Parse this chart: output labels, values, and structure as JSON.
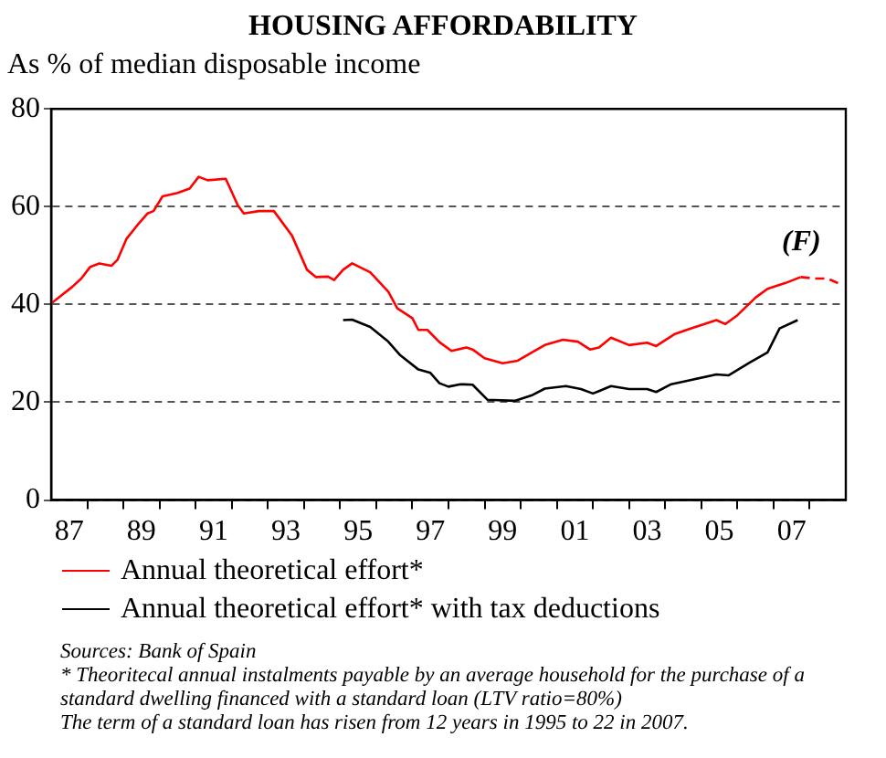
{
  "chart_data": {
    "type": "line",
    "title": "HOUSING AFFORDABILITY",
    "ylabel": "As % of median disposable income",
    "xlim": [
      "1987-01-01",
      "2009-01-01"
    ],
    "xticks": [
      {
        "value": "1987-07-01",
        "label": "87"
      },
      {
        "value": "1988-01-01",
        "label": null
      },
      {
        "value": "1989-01-01",
        "label": null
      },
      {
        "value": "1989-07-01",
        "label": "89"
      },
      {
        "value": "1990-01-01",
        "label": null
      },
      {
        "value": "1991-01-01",
        "label": null
      },
      {
        "value": "1991-07-01",
        "label": "91"
      },
      {
        "value": "1992-01-01",
        "label": null
      },
      {
        "value": "1993-01-01",
        "label": null
      },
      {
        "value": "1993-07-01",
        "label": "93"
      },
      {
        "value": "1994-01-01",
        "label": null
      },
      {
        "value": "1995-01-01",
        "label": null
      },
      {
        "value": "1995-07-01",
        "label": "95"
      },
      {
        "value": "1996-01-01",
        "label": null
      },
      {
        "value": "1997-01-01",
        "label": null
      },
      {
        "value": "1997-07-01",
        "label": "97"
      },
      {
        "value": "1998-01-01",
        "label": null
      },
      {
        "value": "1999-01-01",
        "label": null
      },
      {
        "value": "1999-07-01",
        "label": "99"
      },
      {
        "value": "2000-01-01",
        "label": null
      },
      {
        "value": "2001-01-01",
        "label": null
      },
      {
        "value": "2001-07-01",
        "label": "01"
      },
      {
        "value": "2002-01-01",
        "label": null
      },
      {
        "value": "2003-01-01",
        "label": null
      },
      {
        "value": "2003-07-01",
        "label": "03"
      },
      {
        "value": "2004-01-01",
        "label": null
      },
      {
        "value": "2005-01-01",
        "label": null
      },
      {
        "value": "2005-07-01",
        "label": "05"
      },
      {
        "value": "2006-01-01",
        "label": null
      },
      {
        "value": "2007-01-01",
        "label": null
      },
      {
        "value": "2007-07-01",
        "label": "07"
      },
      {
        "value": "2008-01-01",
        "label": null
      }
    ],
    "ylim": [
      0,
      80
    ],
    "yticks": [
      0,
      20,
      40,
      60,
      80
    ],
    "grid": "y",
    "legend": "bottom",
    "marker": "none",
    "series": [
      {
        "name": "Annual theoretical effort*",
        "color": "#ff0000",
        "line_style": "solid",
        "x": [
          "1987-01",
          "1987-08",
          "1987-11",
          "1988-02",
          "1988-05",
          "1988-09",
          "1988-11",
          "1989-02",
          "1989-06",
          "1989-09",
          "1989-11",
          "1990-02",
          "1990-07",
          "1990-11",
          "1991-02",
          "1991-05",
          "1991-11",
          "1992-03",
          "1992-05",
          "1992-10",
          "1993-03",
          "1993-09",
          "1994-02",
          "1994-05",
          "1994-09",
          "1994-11",
          "1995-02",
          "1995-05",
          "1995-11",
          "1996-05",
          "1996-08",
          "1997-01",
          "1997-03",
          "1997-06",
          "1997-10",
          "1998-02",
          "1998-07",
          "1998-09",
          "1999-01",
          "1999-07",
          "1999-12",
          "2000-05",
          "2000-09",
          "2001-03",
          "2001-08",
          "2001-12",
          "2002-03",
          "2002-07",
          "2003-01",
          "2003-07",
          "2003-10",
          "2004-04",
          "2004-09",
          "2005-06",
          "2005-09",
          "2006-01",
          "2006-07",
          "2006-11",
          "2007-05",
          "2007-10"
        ],
        "values": [
          40.2,
          43.6,
          45.3,
          47.7,
          48.4,
          47.9,
          49.1,
          53.4,
          56.5,
          58.6,
          59.1,
          62.1,
          62.8,
          63.7,
          66.1,
          65.4,
          65.7,
          60.3,
          58.6,
          59.1,
          59.1,
          54.1,
          47.1,
          45.6,
          45.7,
          45,
          47.1,
          48.4,
          46.6,
          42.6,
          39.2,
          37.2,
          34.8,
          34.8,
          32.3,
          30.5,
          31.2,
          30.8,
          29,
          28,
          28.5,
          30.3,
          31.7,
          32.8,
          32.4,
          30.8,
          31.2,
          33.2,
          31.7,
          32.2,
          31.5,
          33.9,
          35,
          36.8,
          36,
          37.8,
          41.4,
          43.2,
          44.4,
          45.6
        ]
      },
      {
        "color": "#ff0000",
        "line_style": "dashed",
        "x": [
          "2007-10",
          "2008-03",
          "2008-07",
          "2008-11"
        ],
        "values": [
          45.6,
          45.3,
          45.3,
          44.2
        ]
      },
      {
        "name": "Annual theoretical effort* with tax deductions",
        "color": "#000000",
        "line_style": "solid",
        "x": [
          "1995-02",
          "1995-05",
          "1995-11",
          "1996-05",
          "1996-09",
          "1997-03",
          "1997-07",
          "1997-10",
          "1998-01",
          "1998-05",
          "1998-09",
          "1999-02",
          "1999-11",
          "2000-05",
          "2000-09",
          "2001-04",
          "2001-09",
          "2002-01",
          "2002-03",
          "2002-07",
          "2003-01",
          "2003-07",
          "2003-10",
          "2004-03",
          "2004-09",
          "2005-06",
          "2005-10",
          "2006-05",
          "2006-11",
          "2007-03",
          "2007-09"
        ],
        "values": [
          36.8,
          36.9,
          35.4,
          32.4,
          29.6,
          26.7,
          26,
          23.9,
          23.2,
          23.7,
          23.6,
          20.5,
          20.3,
          21.5,
          22.8,
          23.3,
          22.7,
          21.8,
          22.3,
          23.3,
          22.7,
          22.7,
          22.1,
          23.7,
          24.5,
          25.7,
          25.5,
          28.1,
          30.2,
          35.1,
          36.8
        ]
      }
    ],
    "annotations": [
      "(F)",
      "Sources: Bank of Spain",
      "* Theoritecal annual instalments payable by an average household for the purchase of a standard dwelling financed with a standard loan (LTV ratio=80%)",
      "The term of a standard loan has risen from 12 years in 1995 to 22 in 2007."
    ]
  }
}
